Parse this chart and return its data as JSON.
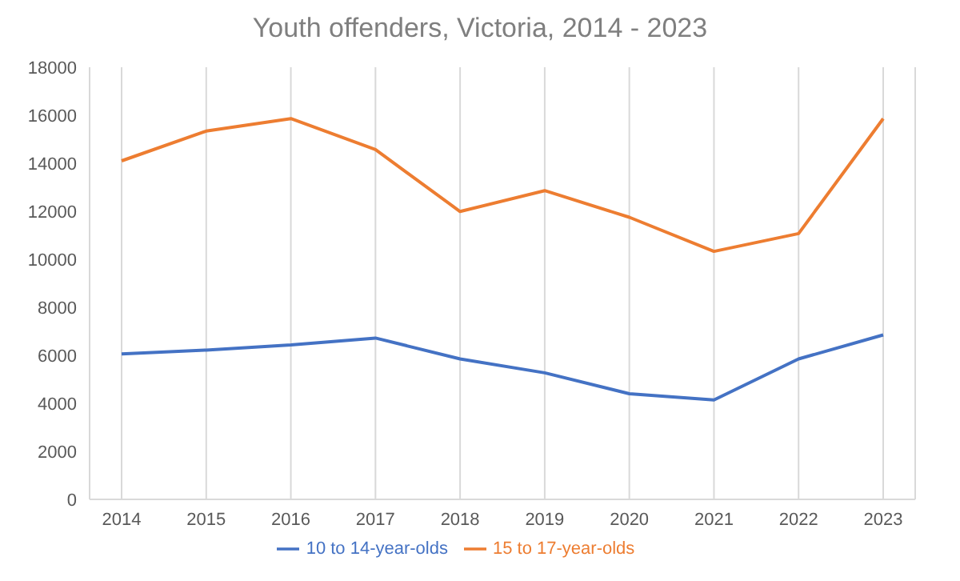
{
  "chart_data": {
    "type": "line",
    "title": "Youth offenders, Victoria, 2014 - 2023",
    "categories": [
      "2014",
      "2015",
      "2016",
      "2017",
      "2018",
      "2019",
      "2020",
      "2021",
      "2022",
      "2023"
    ],
    "series": [
      {
        "name": "10 to 14-year-olds",
        "color": "#4472c4",
        "values": [
          6060,
          6220,
          6430,
          6720,
          5850,
          5270,
          4400,
          4140,
          5850,
          6850
        ]
      },
      {
        "name": "15 to 17-year-olds",
        "color": "#ed7d31",
        "values": [
          14100,
          15340,
          15860,
          14570,
          11990,
          12860,
          11750,
          10330,
          11070,
          15860
        ]
      }
    ],
    "ylim": [
      0,
      18000
    ],
    "yticks": [
      0,
      2000,
      4000,
      6000,
      8000,
      10000,
      12000,
      14000,
      16000,
      18000
    ],
    "grid": "x",
    "legend": "bottom",
    "marker": "none",
    "line_style": "solid"
  }
}
